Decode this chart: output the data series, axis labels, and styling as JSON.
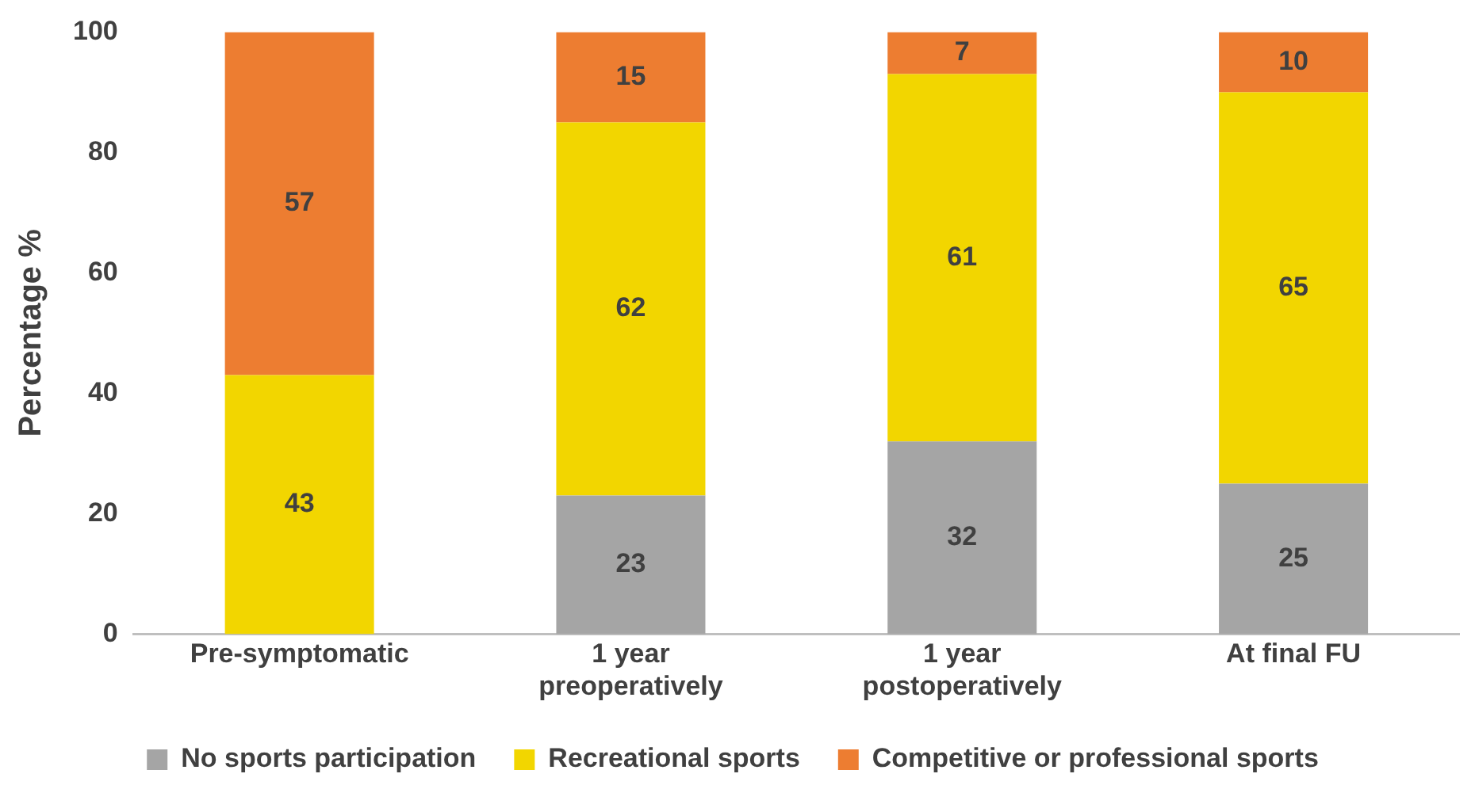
{
  "chart_data": {
    "type": "bar",
    "ylabel": "Percentage %",
    "categories": [
      "Pre-symptomatic",
      "1 year preoperatively",
      "1 year postoperatively",
      "At final FU"
    ],
    "stacked": true,
    "ylim": [
      0,
      100
    ],
    "yticks": [
      0,
      20,
      40,
      60,
      80,
      100
    ],
    "grid": false,
    "legend": "bottom",
    "series": [
      {
        "name": "No sports participation",
        "color": "#a5a5a5",
        "values": [
          0,
          23,
          32,
          25
        ],
        "value_labels": [
          null,
          "23",
          "32",
          "25"
        ]
      },
      {
        "name": "Recreational sports",
        "color": "#f2d600",
        "values": [
          43,
          62,
          61,
          65
        ],
        "value_labels": [
          "43",
          "62",
          "61",
          "65"
        ]
      },
      {
        "name": "Competitive or professional sports",
        "color": "#ed7d31",
        "values": [
          57,
          15,
          7,
          10
        ],
        "value_labels": [
          "57",
          "15",
          "7",
          "10"
        ]
      }
    ]
  }
}
